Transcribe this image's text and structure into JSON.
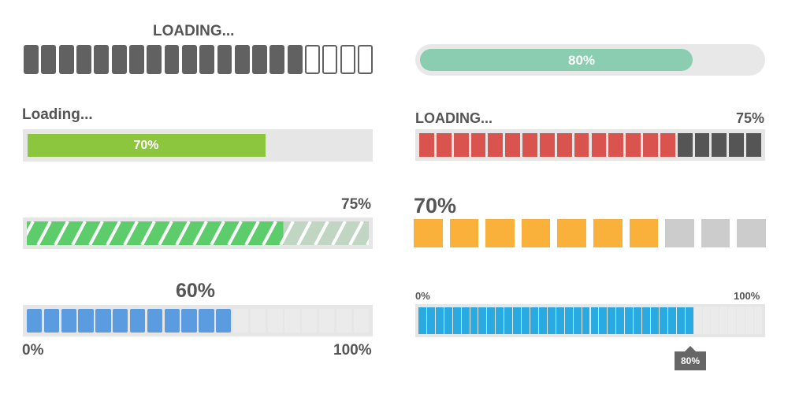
{
  "bars": [
    {
      "id": "bar1",
      "label": "LOADING...",
      "progress": {
        "filled_segments": 16,
        "total_segments": 20
      },
      "colors": {
        "filled": "#616161",
        "empty_border": "#616161"
      }
    },
    {
      "id": "bar2",
      "label": "80%",
      "progress": 0.8,
      "colors": {
        "track": "#e8e8e8",
        "fill": "#8acdb0",
        "text": "#ffffff"
      }
    },
    {
      "id": "bar3",
      "label": "Loading...",
      "value_text": "70%",
      "progress": 0.7,
      "colors": {
        "track": "#e6e6e6",
        "fill": "#8cc63f",
        "text": "#ffffff"
      }
    },
    {
      "id": "bar4",
      "label": "LOADING...",
      "value_text": "75%",
      "progress": {
        "filled_segments": 15,
        "total_segments": 20
      },
      "colors": {
        "filled": "#d9534f",
        "empty": "#555555",
        "track": "#e6e6e6"
      }
    },
    {
      "id": "bar5",
      "value_text": "75%",
      "progress": 0.75,
      "colors": {
        "fill": "#5ccd6a",
        "remaining": "#c0d6c3",
        "track": "#e6e6e6"
      }
    },
    {
      "id": "bar6",
      "value_text": "70%",
      "progress": {
        "filled_segments": 7,
        "total_segments": 10
      },
      "colors": {
        "filled": "#f9b13c",
        "empty": "#cccccc"
      }
    },
    {
      "id": "bar7",
      "value_text": "60%",
      "min_label": "0%",
      "max_label": "100%",
      "progress": {
        "filled_segments": 12,
        "total_segments": 20
      },
      "colors": {
        "filled": "#5b9be0",
        "empty": "#ebebeb",
        "track": "#e6e6e6"
      }
    },
    {
      "id": "bar8",
      "min_label": "0%",
      "max_label": "100%",
      "marker_text": "80%",
      "progress": 0.8,
      "colors": {
        "filled": "#29abe2",
        "empty": "#ebebeb",
        "track": "#e6e6e6",
        "marker": "#666666"
      }
    }
  ]
}
